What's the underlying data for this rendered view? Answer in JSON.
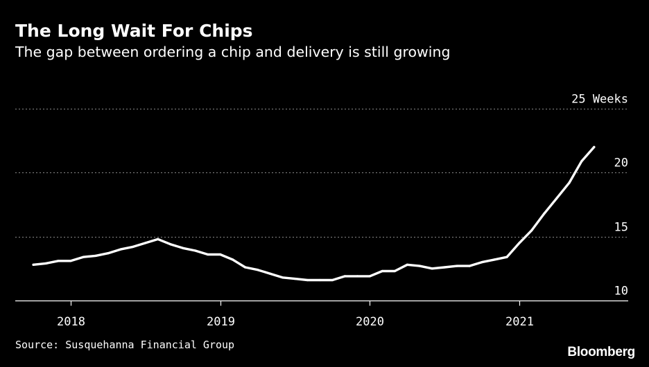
{
  "header": {
    "title": "The Long Wait For Chips",
    "subtitle": "The gap between ordering a chip and delivery is still growing"
  },
  "footer": {
    "source": "Source: Susquehanna Financial Group",
    "brand": "Bloomberg"
  },
  "colors": {
    "background": "#000000",
    "line": "#ffffff",
    "grid": "#8a8a8a",
    "text": "#ffffff"
  },
  "chart_data": {
    "type": "line",
    "title": "The Long Wait For Chips",
    "subtitle": "The gap between ordering a chip and delivery is still growing",
    "xlabel": "",
    "ylabel": "",
    "unit": "Weeks",
    "ylim": [
      10,
      25
    ],
    "xlim": [
      "2017-08",
      "2021-09"
    ],
    "y_ticks": [
      {
        "value": 25,
        "label": "25 Weeks"
      },
      {
        "value": 20,
        "label": "20"
      },
      {
        "value": 15,
        "label": "15"
      },
      {
        "value": 10,
        "label": "10"
      }
    ],
    "x_ticks": [
      {
        "value": "2018-01",
        "label": "2018"
      },
      {
        "value": "2019-01",
        "label": "2019"
      },
      {
        "value": "2020-01",
        "label": "2020"
      },
      {
        "value": "2021-01",
        "label": "2021"
      }
    ],
    "grid": true,
    "legend": "none",
    "series": [
      {
        "color": "#ffffff",
        "x": [
          "2017-10",
          "2017-11",
          "2017-12",
          "2018-01",
          "2018-02",
          "2018-03",
          "2018-04",
          "2018-05",
          "2018-06",
          "2018-07",
          "2018-08",
          "2018-09",
          "2018-10",
          "2018-11",
          "2018-12",
          "2019-01",
          "2019-02",
          "2019-03",
          "2019-04",
          "2019-05",
          "2019-06",
          "2019-07",
          "2019-08",
          "2019-09",
          "2019-10",
          "2019-11",
          "2019-12",
          "2020-01",
          "2020-02",
          "2020-03",
          "2020-04",
          "2020-05",
          "2020-06",
          "2020-07",
          "2020-08",
          "2020-09",
          "2020-10",
          "2020-11",
          "2020-12",
          "2021-01",
          "2021-02",
          "2021-03",
          "2021-04",
          "2021-05",
          "2021-06",
          "2021-07"
        ],
        "values": [
          12.8,
          12.9,
          13.1,
          13.1,
          13.4,
          13.5,
          13.7,
          14.0,
          14.2,
          14.5,
          14.8,
          14.4,
          14.1,
          13.9,
          13.6,
          13.6,
          13.2,
          12.6,
          12.4,
          12.1,
          11.8,
          11.7,
          11.6,
          11.6,
          11.6,
          11.9,
          11.9,
          11.9,
          12.3,
          12.3,
          12.8,
          12.7,
          12.5,
          12.6,
          12.7,
          12.7,
          13.0,
          13.2,
          13.4,
          14.5,
          15.5,
          16.8,
          18.0,
          19.2,
          20.9,
          22.0
        ]
      }
    ]
  }
}
